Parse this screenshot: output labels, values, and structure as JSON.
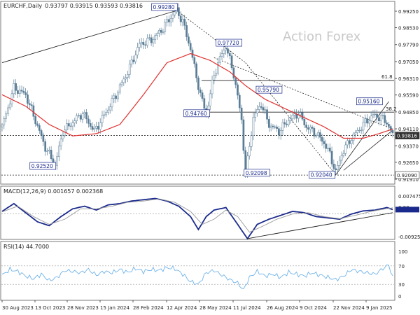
{
  "header": {
    "title": "EURCHF,Daily",
    "ohlc": "0.93797 0.93915 0.93593 0.93816",
    "watermark": "Action Forex"
  },
  "colors": {
    "candle": "#5a7d96",
    "ema": "#e0302e",
    "macd": "#1a2a8c",
    "signal": "#9a9a9a",
    "rsi": "#6fb3e8",
    "line": "#222222",
    "label_border": "#1a2a8c"
  },
  "chart_data": [
    {
      "type": "candlestick",
      "panel": "price",
      "series": [
        {
          "name": "EURCHF,Daily",
          "values": [
            [
              0,
              0.942
            ],
            [
              6,
              0.959
            ],
            [
              12,
              0.956
            ],
            [
              16,
              0.947
            ],
            [
              22,
              0.933
            ],
            [
              27,
              0.9252
            ],
            [
              31,
              0.94
            ],
            [
              36,
              0.944
            ],
            [
              41,
              0.948
            ],
            [
              47,
              0.94
            ],
            [
              52,
              0.947
            ],
            [
              58,
              0.956
            ],
            [
              64,
              0.966
            ],
            [
              70,
              0.978
            ],
            [
              76,
              0.98
            ],
            [
              81,
              0.984
            ],
            [
              86,
              0.99
            ],
            [
              89,
              0.9928
            ],
            [
              92,
              0.988
            ],
            [
              96,
              0.976
            ],
            [
              101,
              0.956
            ],
            [
              104,
              0.9476
            ],
            [
              108,
              0.965
            ],
            [
              112,
              0.974
            ],
            [
              114,
              0.9772
            ],
            [
              118,
              0.965
            ],
            [
              122,
              0.945
            ],
            [
              124,
              0.921
            ],
            [
              128,
              0.946
            ],
            [
              132,
              0.952
            ],
            [
              136,
              0.943
            ],
            [
              141,
              0.94
            ],
            [
              146,
              0.945
            ],
            [
              151,
              0.948
            ],
            [
              155,
              0.942
            ],
            [
              160,
              0.939
            ],
            [
              164,
              0.935
            ],
            [
              167,
              0.93
            ],
            [
              170,
              0.922
            ],
            [
              173,
              0.93
            ],
            [
              177,
              0.936
            ],
            [
              181,
              0.94
            ],
            [
              185,
              0.944
            ],
            [
              189,
              0.947
            ],
            [
              193,
              0.946
            ],
            [
              196,
              0.944
            ],
            [
              199,
              0.9382
            ]
          ]
        }
      ],
      "ema": {
        "name": "EMA",
        "values": [
          [
            0,
            0.956
          ],
          [
            12,
            0.951
          ],
          [
            24,
            0.943
          ],
          [
            36,
            0.938
          ],
          [
            48,
            0.939
          ],
          [
            60,
            0.943
          ],
          [
            72,
            0.956
          ],
          [
            84,
            0.97
          ],
          [
            96,
            0.974
          ],
          [
            106,
            0.971
          ],
          [
            116,
            0.966
          ],
          [
            124,
            0.96
          ],
          [
            134,
            0.954
          ],
          [
            144,
            0.95
          ],
          [
            154,
            0.946
          ],
          [
            164,
            0.942
          ],
          [
            174,
            0.937
          ],
          [
            184,
            0.937
          ],
          [
            192,
            0.939
          ],
          [
            199,
            0.941
          ]
        ]
      },
      "y_ticks": [
        "0.99250",
        "0.98530",
        "0.97790",
        "0.97050",
        "0.96310",
        "0.95590",
        "0.94850",
        "0.94110",
        "0.93370",
        "0.92650",
        "0.91910"
      ],
      "ylim": [
        0.9191,
        0.9925
      ],
      "level_labels": [
        "0.92090",
        "0.93816"
      ],
      "annotations": [
        "0.99280",
        "0.97720",
        "0.95790",
        "0.94760",
        "0.95160",
        "0.92520",
        "0.92098",
        "0.92040"
      ],
      "fib_labels": [
        "61.8",
        "38.2"
      ],
      "horizontal_levels": [
        0.9622,
        0.9484,
        0.9209,
        0.9382
      ]
    },
    {
      "type": "line",
      "panel": "macd",
      "title": "MACD(12,26,9) 0.001657 0.002368",
      "series": [
        {
          "name": "MACD",
          "values": [
            [
              0,
              0.001
            ],
            [
              6,
              0.004
            ],
            [
              12,
              0.0005
            ],
            [
              18,
              -0.003
            ],
            [
              24,
              -0.0045
            ],
            [
              30,
              -0.001
            ],
            [
              36,
              0.002
            ],
            [
              42,
              0.003
            ],
            [
              48,
              0.0015
            ],
            [
              54,
              0.0035
            ],
            [
              60,
              0.004
            ],
            [
              66,
              0.005
            ],
            [
              72,
              0.0055
            ],
            [
              78,
              0.006
            ],
            [
              84,
              0.005
            ],
            [
              90,
              0.003
            ],
            [
              96,
              -0.001
            ],
            [
              100,
              -0.006
            ],
            [
              104,
              -0.001
            ],
            [
              108,
              0.0015
            ],
            [
              114,
              0.0025
            ],
            [
              120,
              -0.004
            ],
            [
              125,
              -0.0095
            ],
            [
              130,
              -0.004
            ],
            [
              136,
              -0.002
            ],
            [
              142,
              -0.0005
            ],
            [
              148,
              0.001
            ],
            [
              154,
              0.0005
            ],
            [
              160,
              -0.001
            ],
            [
              166,
              -0.0015
            ],
            [
              172,
              -0.002
            ],
            [
              178,
              0.0
            ],
            [
              184,
              0.0012
            ],
            [
              190,
              0.0015
            ],
            [
              196,
              0.0025
            ],
            [
              199,
              0.0017
            ]
          ]
        },
        {
          "name": "Signal",
          "values": [
            [
              0,
              0.0008
            ],
            [
              8,
              0.003
            ],
            [
              16,
              -0.001
            ],
            [
              24,
              -0.004
            ],
            [
              32,
              -0.002
            ],
            [
              40,
              0.002
            ],
            [
              48,
              0.002
            ],
            [
              56,
              0.003
            ],
            [
              64,
              0.0045
            ],
            [
              72,
              0.005
            ],
            [
              80,
              0.0058
            ],
            [
              88,
              0.0045
            ],
            [
              96,
              0.001
            ],
            [
              102,
              -0.004
            ],
            [
              108,
              -0.002
            ],
            [
              114,
              0.0015
            ],
            [
              120,
              -0.001
            ],
            [
              126,
              -0.007
            ],
            [
              132,
              -0.005
            ],
            [
              140,
              -0.002
            ],
            [
              148,
              0.0
            ],
            [
              156,
              0.0005
            ],
            [
              164,
              -0.001
            ],
            [
              172,
              -0.0018
            ],
            [
              180,
              -0.0005
            ],
            [
              188,
              0.001
            ],
            [
              194,
              0.0018
            ],
            [
              199,
              0.0024
            ]
          ]
        }
      ],
      "y_ticks": [
        "0.00.."
      ],
      "y_labels": [
        "0.007475",
        "0.00",
        "-0.009252"
      ],
      "ylim": [
        -0.009252,
        0.007475
      ],
      "trendline": [
        [
          125,
          -0.0095
        ],
        [
          199,
          0.0005
        ]
      ]
    },
    {
      "type": "line",
      "panel": "rsi",
      "title": "RSI(14) 44.7000",
      "series": [
        {
          "name": "RSI(14)",
          "values": [
            [
              0,
              50
            ],
            [
              4,
              62
            ],
            [
              8,
              58
            ],
            [
              12,
              48
            ],
            [
              16,
              42
            ],
            [
              20,
              52
            ],
            [
              24,
              38
            ],
            [
              28,
              45
            ],
            [
              32,
              60
            ],
            [
              36,
              58
            ],
            [
              40,
              55
            ],
            [
              44,
              62
            ],
            [
              48,
              50
            ],
            [
              52,
              58
            ],
            [
              56,
              55
            ],
            [
              60,
              62
            ],
            [
              64,
              56
            ],
            [
              68,
              64
            ],
            [
              72,
              58
            ],
            [
              76,
              62
            ],
            [
              80,
              60
            ],
            [
              84,
              66
            ],
            [
              88,
              64
            ],
            [
              92,
              52
            ],
            [
              96,
              36
            ],
            [
              100,
              30
            ],
            [
              104,
              55
            ],
            [
              108,
              60
            ],
            [
              112,
              50
            ],
            [
              116,
              40
            ],
            [
              120,
              33
            ],
            [
              123,
              18
            ],
            [
              126,
              45
            ],
            [
              130,
              58
            ],
            [
              134,
              48
            ],
            [
              138,
              52
            ],
            [
              142,
              45
            ],
            [
              146,
              56
            ],
            [
              150,
              52
            ],
            [
              154,
              48
            ],
            [
              158,
              55
            ],
            [
              162,
              50
            ],
            [
              166,
              45
            ],
            [
              170,
              40
            ],
            [
              174,
              48
            ],
            [
              178,
              62
            ],
            [
              182,
              58
            ],
            [
              186,
              55
            ],
            [
              190,
              52
            ],
            [
              194,
              64
            ],
            [
              197,
              72
            ],
            [
              199,
              44.7
            ]
          ]
        }
      ],
      "y_labels": [
        "100",
        "70",
        "30",
        "0"
      ],
      "ylim": [
        0,
        100
      ],
      "guides": [
        70,
        30
      ]
    }
  ],
  "x_axis": {
    "labels": [
      "30 Aug 2023",
      "13 Oct 2023",
      "28 Nov 2023",
      "15 Jan 2024",
      "28 Feb 2024",
      "12 Apr 2024",
      "28 May 2024",
      "11 Jul 2024",
      "26 Aug 2024",
      "9 Oct 2024",
      "22 Nov 2024",
      "9 Jan 2025"
    ]
  }
}
